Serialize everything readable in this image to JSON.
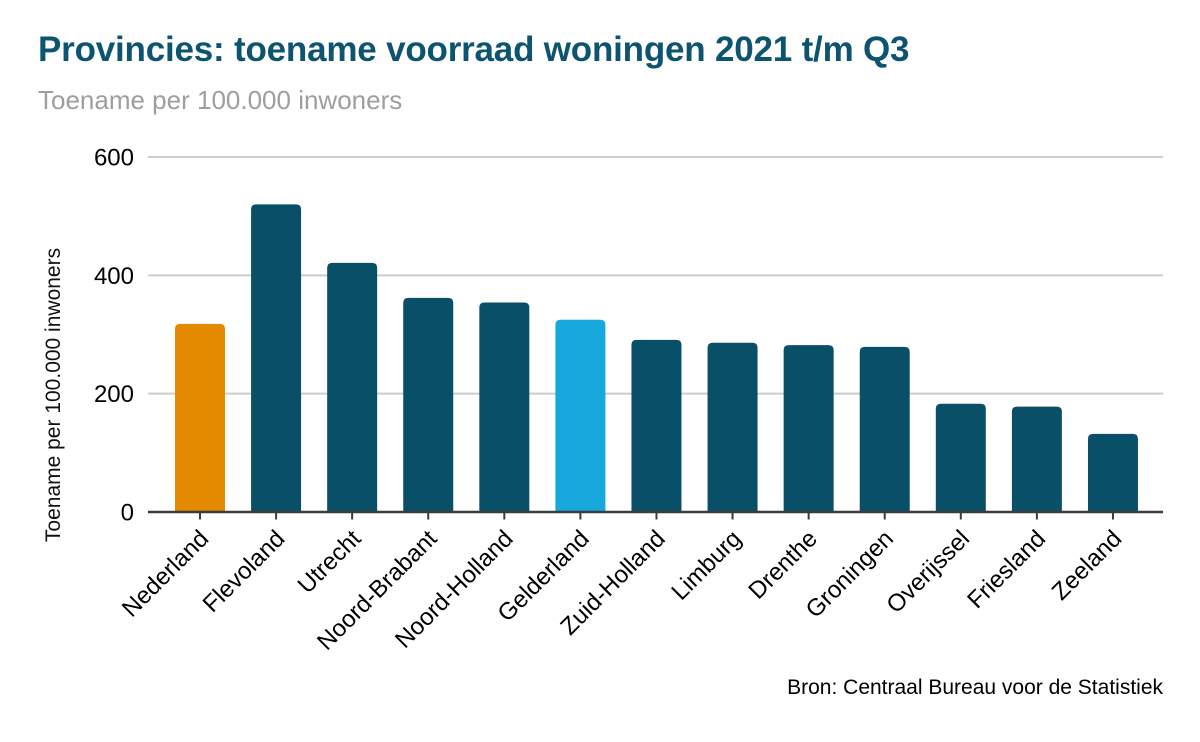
{
  "chart_data": {
    "type": "bar",
    "title": "Provincies: toename voorraad woningen 2021 t/m Q3",
    "subtitle": "Toename per 100.000 inwoners",
    "xlabel": "",
    "ylabel": "Toename per 100.000 inwoners",
    "source": "Bron: Centraal Bureau voor de Statistiek",
    "ylim": [
      0,
      600
    ],
    "yticks": [
      0,
      200,
      400,
      600
    ],
    "grid": true,
    "legend": false,
    "categories": [
      "Nederland",
      "Flevoland",
      "Utrecht",
      "Noord-Brabant",
      "Noord-Holland",
      "Gelderland",
      "Zuid-Holland",
      "Limburg",
      "Drenthe",
      "Groningen",
      "Overijssel",
      "Friesland",
      "Zeeland"
    ],
    "values": [
      318,
      520,
      421,
      362,
      354,
      325,
      291,
      286,
      282,
      279,
      183,
      178,
      132
    ],
    "bar_colors": [
      "#e38a00",
      "#094f68",
      "#094f68",
      "#094f68",
      "#094f68",
      "#17a8de",
      "#094f68",
      "#094f68",
      "#094f68",
      "#094f68",
      "#094f68",
      "#094f68",
      "#094f68"
    ],
    "colors": {
      "default_bar": "#094f68",
      "highlight_nederland": "#e38a00",
      "highlight_gelderland": "#17a8de",
      "title": "#0d5470",
      "subtitle": "#9e9e9e",
      "gridline": "#cccccc",
      "axis": "#3c3c3c",
      "tick_text": "#000000"
    }
  }
}
